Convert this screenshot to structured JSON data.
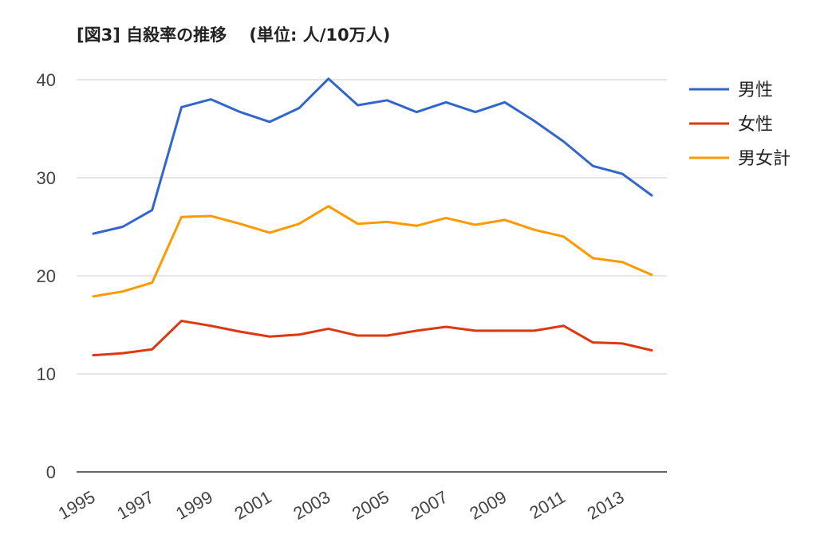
{
  "chart_data": {
    "type": "line",
    "title": "[図3] 自殺率の推移　 (単位: 人/10万人)",
    "xlabel": "",
    "ylabel": "",
    "x": [
      1995,
      1996,
      1997,
      1998,
      1999,
      2000,
      2001,
      2002,
      2003,
      2004,
      2005,
      2006,
      2007,
      2008,
      2009,
      2010,
      2011,
      2012,
      2013,
      2014
    ],
    "x_tick_labels": [
      "1995",
      "1997",
      "1999",
      "2001",
      "2003",
      "2005",
      "2007",
      "2009",
      "2011",
      "2013"
    ],
    "y_tick_labels": [
      "0",
      "10",
      "20",
      "30",
      "40"
    ],
    "ylim": [
      0,
      40
    ],
    "grid": true,
    "legend_position": "right",
    "series": [
      {
        "name": "男性",
        "color": "#3366cc",
        "values": [
          24.3,
          25.0,
          26.7,
          37.2,
          38.0,
          36.7,
          35.7,
          37.1,
          40.1,
          37.4,
          37.9,
          36.7,
          37.7,
          36.7,
          37.7,
          35.8,
          33.7,
          31.2,
          30.4,
          28.2
        ]
      },
      {
        "name": "女性",
        "color": "#dc3912",
        "values": [
          11.9,
          12.1,
          12.5,
          15.4,
          14.9,
          14.3,
          13.8,
          14.0,
          14.6,
          13.9,
          13.9,
          14.4,
          14.8,
          14.4,
          14.4,
          14.4,
          14.9,
          13.2,
          13.1,
          12.4
        ]
      },
      {
        "name": "男女計",
        "color": "#ff9900",
        "values": [
          17.9,
          18.4,
          19.3,
          26.0,
          26.1,
          25.3,
          24.4,
          25.3,
          27.1,
          25.3,
          25.5,
          25.1,
          25.9,
          25.2,
          25.7,
          24.7,
          24.0,
          21.8,
          21.4,
          20.1
        ]
      }
    ]
  }
}
